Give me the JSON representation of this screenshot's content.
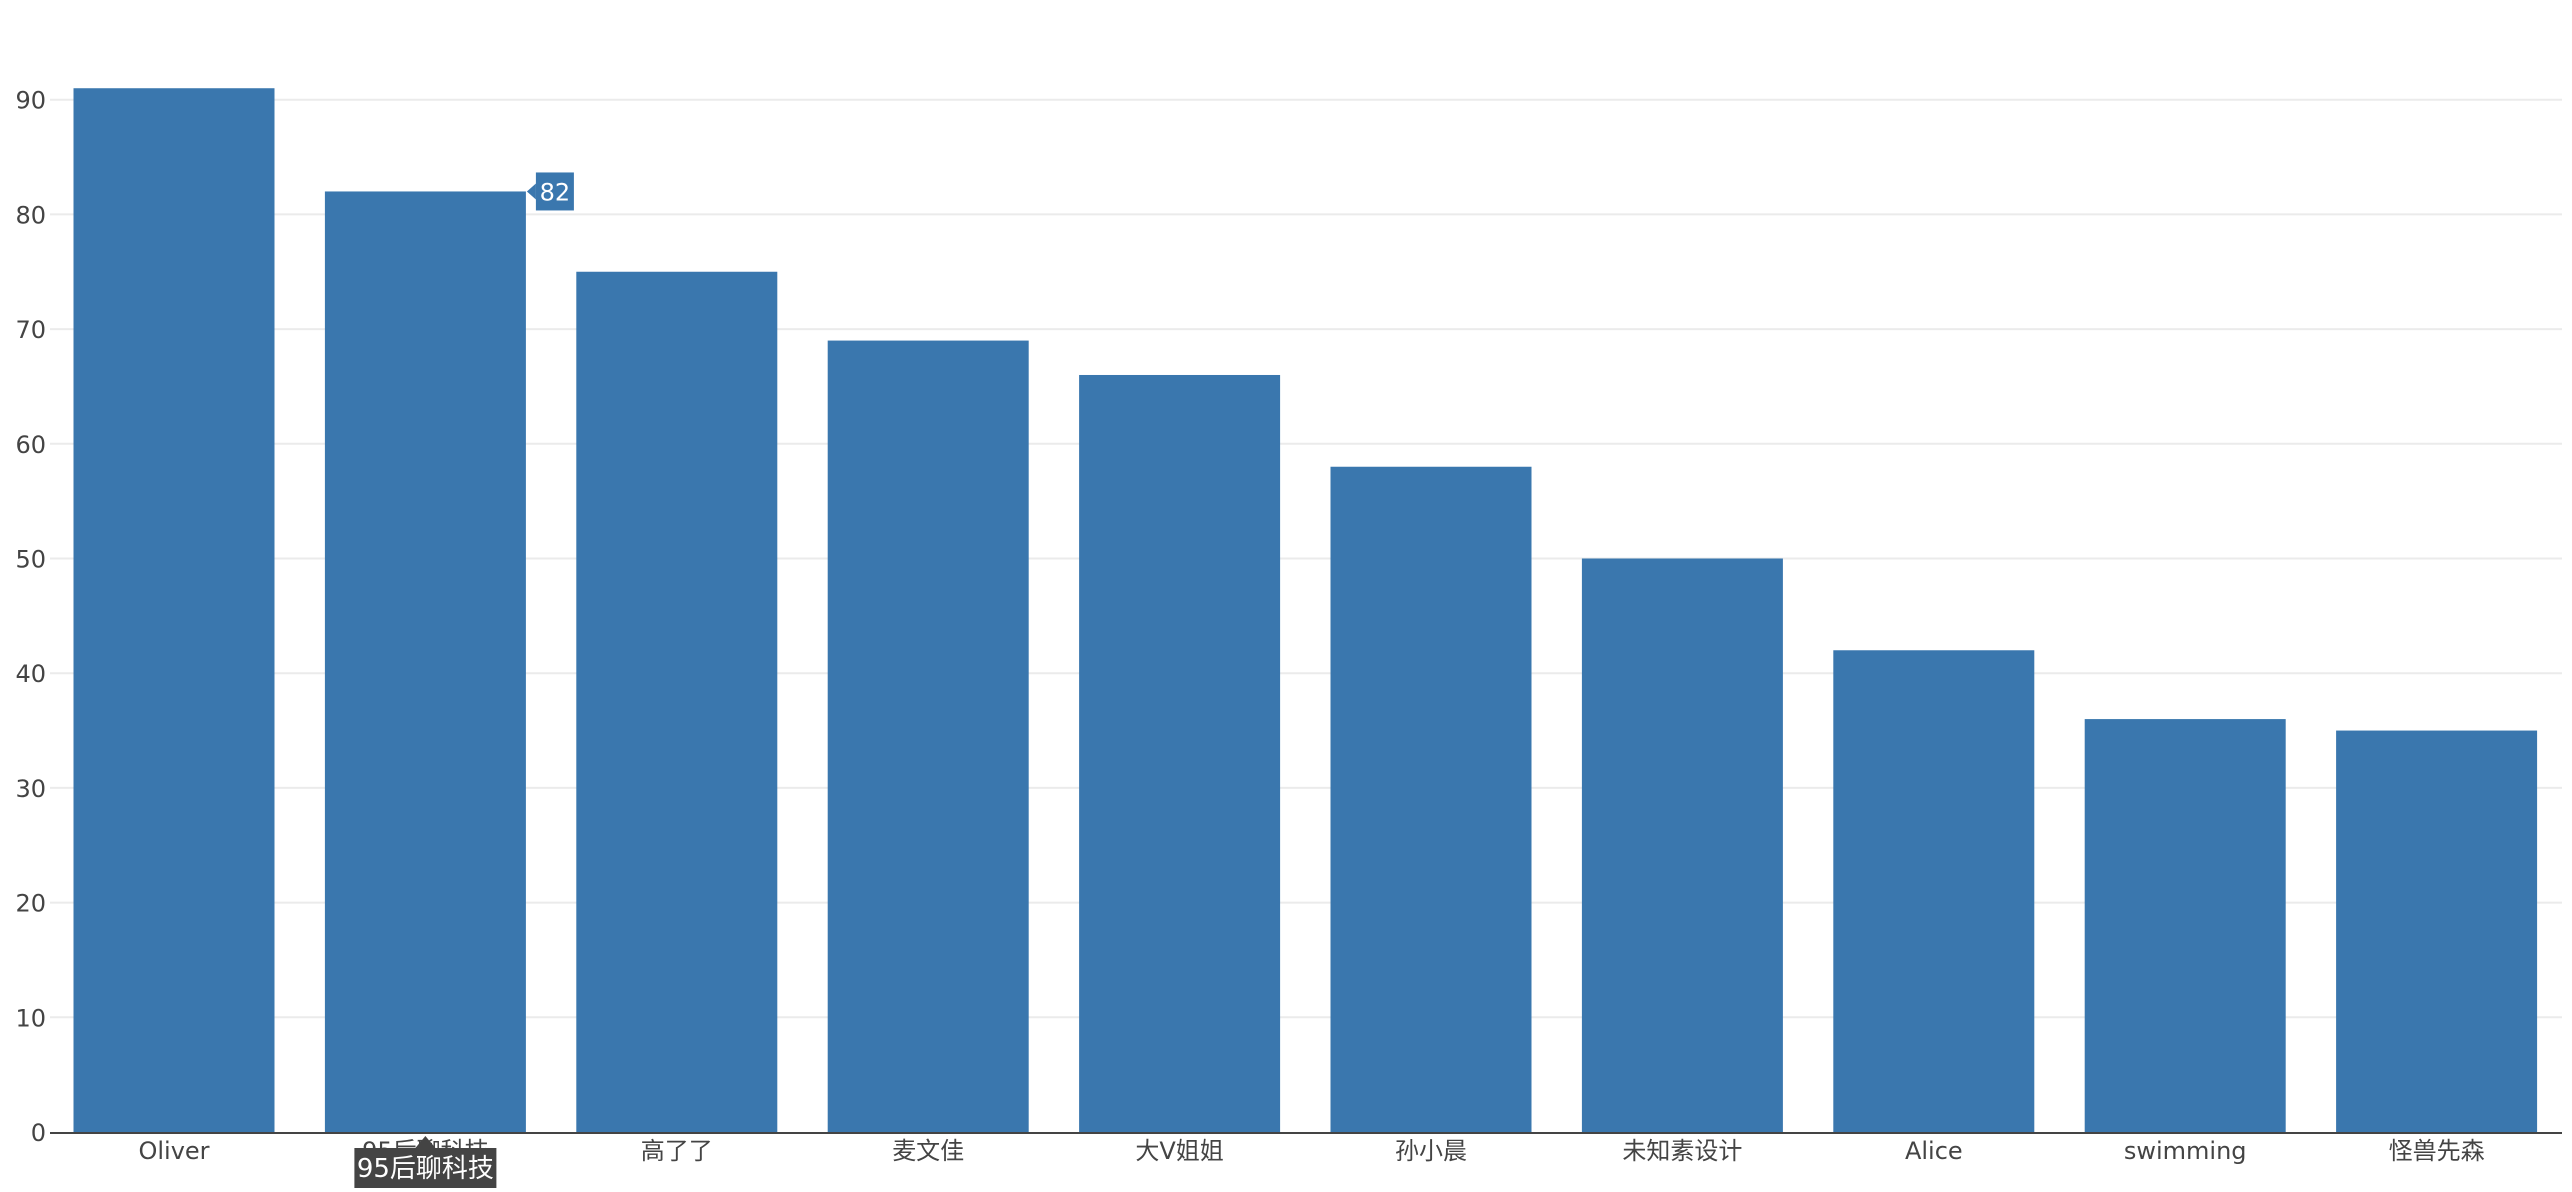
{
  "chart_data": {
    "type": "bar",
    "title": "",
    "xlabel": "",
    "ylabel": "",
    "categories": [
      "Oliver",
      "95后聊科技",
      "高了了",
      "麦文佳",
      "大V姐姐",
      "孙小晨",
      "未知素设计",
      "Alice",
      "swimming",
      "怪兽先森"
    ],
    "values": [
      91,
      82,
      75,
      69,
      66,
      58,
      50,
      42,
      36,
      35
    ],
    "ylim": [
      0,
      90
    ],
    "yticks": [
      "0",
      "10",
      "20",
      "30",
      "40",
      "50",
      "60",
      "70",
      "80",
      "90"
    ],
    "grid": true,
    "bar_color": "#3a77ae",
    "tooltip": {
      "category_index": 1,
      "value_label": "82",
      "category_label": "95后聊科技"
    }
  }
}
